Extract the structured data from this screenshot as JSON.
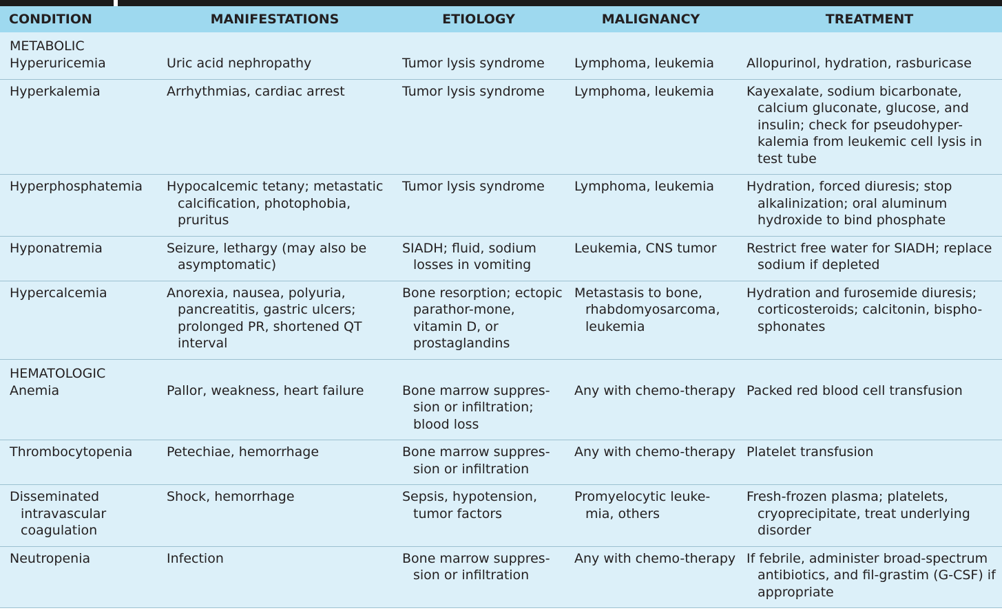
{
  "headers": {
    "condition": "CONDITION",
    "manifestations": "MANIFESTATIONS",
    "etiology": "ETIOLOGY",
    "malignancy": "MALIGNANCY",
    "treatment": "TREATMENT"
  },
  "groups": {
    "metabolic": "METABOLIC",
    "hematologic": "HEMATOLOGIC"
  },
  "rows": [
    {
      "condition": "Hyperuricemia",
      "manifestations": "Uric acid nephropathy",
      "etiology": "Tumor lysis syndrome",
      "malignancy": "Lymphoma, leukemia",
      "treatment": "Allopurinol, hydration, rasburicase"
    },
    {
      "condition": "Hyperkalemia",
      "manifestations": "Arrhythmias, cardiac arrest",
      "etiology": "Tumor lysis syndrome",
      "malignancy": "Lymphoma, leukemia",
      "treatment": "Kayexalate, sodium bicarbonate, calcium gluconate, glucose, and insulin; check for pseudohyper-kalemia from leukemic cell lysis in test tube"
    },
    {
      "condition": "Hyperphosphatemia",
      "manifestations": "Hypocalcemic tetany; metastatic calcification, photophobia, pruritus",
      "etiology": "Tumor lysis syndrome",
      "malignancy": "Lymphoma, leukemia",
      "treatment": "Hydration, forced diuresis; stop alkalinization; oral aluminum hydroxide to bind phosphate"
    },
    {
      "condition": "Hyponatremia",
      "manifestations": "Seizure, lethargy (may also be asymptomatic)",
      "etiology": "SIADH; fluid, sodium losses in vomiting",
      "malignancy": "Leukemia, CNS tumor",
      "treatment": "Restrict free water for SIADH; replace sodium if depleted"
    },
    {
      "condition": "Hypercalcemia",
      "manifestations": "Anorexia, nausea, polyuria, pancreatitis, gastric ulcers; prolonged PR, shortened QT interval",
      "etiology": "Bone resorption; ectopic parathor-mone, vitamin D, or prostaglandins",
      "malignancy": "Metastasis to bone, rhabdomyosarcoma, leukemia",
      "treatment": "Hydration and furosemide diuresis; corticosteroids; calcitonin, bispho-sphonates"
    },
    {
      "condition": "Anemia",
      "manifestations": "Pallor, weakness, heart failure",
      "etiology": "Bone marrow suppres-sion or infiltration; blood loss",
      "malignancy": "Any with chemo-therapy",
      "treatment": "Packed red blood cell transfusion"
    },
    {
      "condition": "Thrombocytopenia",
      "manifestations": "Petechiae, hemorrhage",
      "etiology": "Bone marrow suppres-sion or infiltration",
      "malignancy": "Any with chemo-therapy",
      "treatment": "Platelet transfusion"
    },
    {
      "condition": "Disseminated intravascular coagulation",
      "manifestations": "Shock, hemorrhage",
      "etiology": "Sepsis, hypotension, tumor factors",
      "malignancy": "Promyelocytic leuke-mia, others",
      "treatment": "Fresh-frozen plasma; platelets, cryoprecipitate, treat underlying disorder"
    },
    {
      "condition": "Neutropenia",
      "manifestations": "Infection",
      "etiology": "Bone marrow suppres-sion or infiltration",
      "malignancy": "Any with chemo-therapy",
      "treatment": "If febrile, administer broad-spectrum antibiotics, and fil-grastim (G-CSF) if appropriate"
    }
  ],
  "colors": {
    "header_bg": "#9ed9ef",
    "body_bg": "#dcf0f9",
    "rule": "#9bc0d0",
    "top_bar": "#1b1b1b",
    "text": "#231f20"
  }
}
